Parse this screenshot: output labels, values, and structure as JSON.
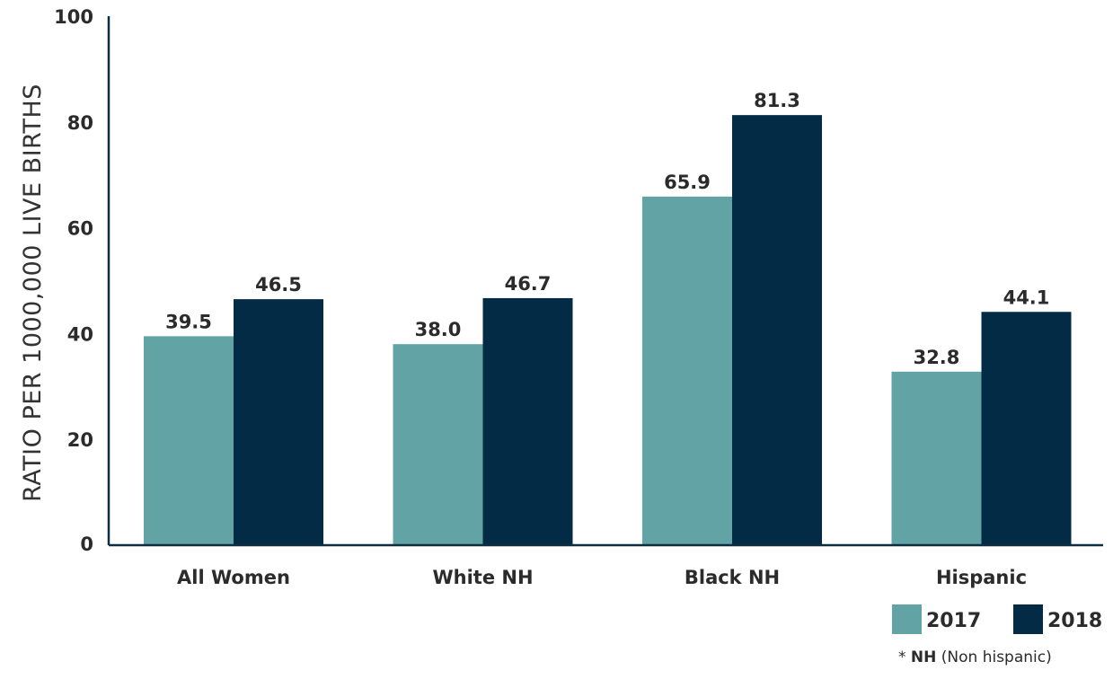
{
  "chart_data": {
    "type": "bar",
    "title": "",
    "xlabel": "",
    "ylabel": "RATIO PER 1000,000 LIVE BIRTHS",
    "ylim": [
      0,
      100
    ],
    "yticks": [
      "0",
      "20",
      "40",
      "60",
      "80",
      "100"
    ],
    "grid": false,
    "categories": [
      "All Women",
      "White NH",
      "Black NH",
      "Hispanic"
    ],
    "series": [
      {
        "name": "2017",
        "color": "#62a4a6",
        "values": [
          39.5,
          38.0,
          65.9,
          32.8
        ],
        "labels": [
          "39.5",
          "38.0",
          "65.9",
          "32.8"
        ]
      },
      {
        "name": "2018",
        "color": "#032b45",
        "values": [
          46.5,
          46.7,
          81.3,
          44.1
        ],
        "labels": [
          "46.5",
          "46.7",
          "81.3",
          "44.1"
        ]
      }
    ],
    "legend_position": "bottom-right",
    "footnote": {
      "prefix": "* ",
      "strong": "NH",
      "rest": " (Non hispanic)"
    }
  }
}
